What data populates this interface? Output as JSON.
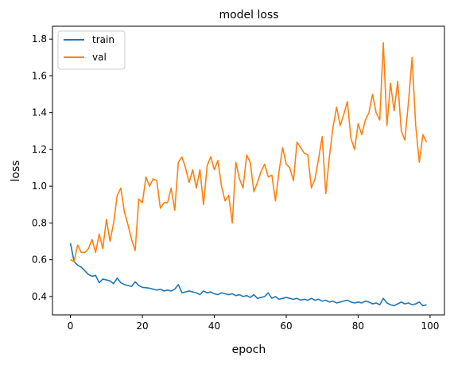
{
  "chart_data": {
    "type": "line",
    "title": "model loss",
    "xlabel": "epoch",
    "ylabel": "loss",
    "xlim": [
      -5,
      104
    ],
    "ylim": [
      0.3,
      1.87
    ],
    "xticks": [
      0,
      20,
      40,
      60,
      80,
      100
    ],
    "yticks": [
      0.4,
      0.6,
      0.8,
      1.0,
      1.2,
      1.4,
      1.6,
      1.8
    ],
    "xtick_labels": [
      "0",
      "20",
      "40",
      "60",
      "80",
      "100"
    ],
    "ytick_labels": [
      "0.4",
      "0.6",
      "0.8",
      "1.0",
      "1.2",
      "1.4",
      "1.6",
      "1.8"
    ],
    "legend_position": "upper-left",
    "series": [
      {
        "name": "train",
        "color": "#1f77b4",
        "values": [
          0.69,
          0.59,
          0.57,
          0.56,
          0.54,
          0.52,
          0.51,
          0.515,
          0.475,
          0.495,
          0.49,
          0.485,
          0.47,
          0.5,
          0.475,
          0.465,
          0.46,
          0.455,
          0.48,
          0.46,
          0.45,
          0.448,
          0.445,
          0.44,
          0.435,
          0.44,
          0.43,
          0.435,
          0.43,
          0.44,
          0.465,
          0.42,
          0.425,
          0.43,
          0.425,
          0.42,
          0.41,
          0.43,
          0.42,
          0.425,
          0.415,
          0.41,
          0.42,
          0.415,
          0.41,
          0.415,
          0.405,
          0.41,
          0.4,
          0.405,
          0.395,
          0.41,
          0.39,
          0.395,
          0.4,
          0.42,
          0.39,
          0.4,
          0.385,
          0.39,
          0.395,
          0.39,
          0.385,
          0.39,
          0.38,
          0.385,
          0.38,
          0.39,
          0.38,
          0.385,
          0.375,
          0.38,
          0.37,
          0.375,
          0.365,
          0.37,
          0.375,
          0.38,
          0.37,
          0.365,
          0.37,
          0.365,
          0.375,
          0.37,
          0.36,
          0.365,
          0.355,
          0.39,
          0.365,
          0.355,
          0.35,
          0.36,
          0.37,
          0.36,
          0.365,
          0.355,
          0.36,
          0.37,
          0.35,
          0.355
        ]
      },
      {
        "name": "val",
        "color": "#ff7f0e",
        "values": [
          0.6,
          0.59,
          0.68,
          0.64,
          0.64,
          0.66,
          0.71,
          0.64,
          0.74,
          0.66,
          0.82,
          0.7,
          0.8,
          0.95,
          0.99,
          0.86,
          0.79,
          0.71,
          0.65,
          0.93,
          0.91,
          1.05,
          1.0,
          1.04,
          1.03,
          0.88,
          0.91,
          0.91,
          0.99,
          0.87,
          1.13,
          1.16,
          1.1,
          1.02,
          1.09,
          0.99,
          1.09,
          0.9,
          1.11,
          1.16,
          1.09,
          1.14,
          1.0,
          0.92,
          0.95,
          0.8,
          1.13,
          1.04,
          0.99,
          1.17,
          1.13,
          0.97,
          1.02,
          1.08,
          1.12,
          1.05,
          1.06,
          0.92,
          1.08,
          1.21,
          1.12,
          1.1,
          1.03,
          1.24,
          1.21,
          1.18,
          1.17,
          0.99,
          1.04,
          1.15,
          1.27,
          0.96,
          1.16,
          1.32,
          1.43,
          1.33,
          1.39,
          1.46,
          1.26,
          1.2,
          1.34,
          1.28,
          1.36,
          1.4,
          1.5,
          1.4,
          1.36,
          1.78,
          1.33,
          1.56,
          1.41,
          1.57,
          1.3,
          1.25,
          1.46,
          1.7,
          1.33,
          1.13,
          1.28,
          1.24
        ]
      }
    ]
  }
}
